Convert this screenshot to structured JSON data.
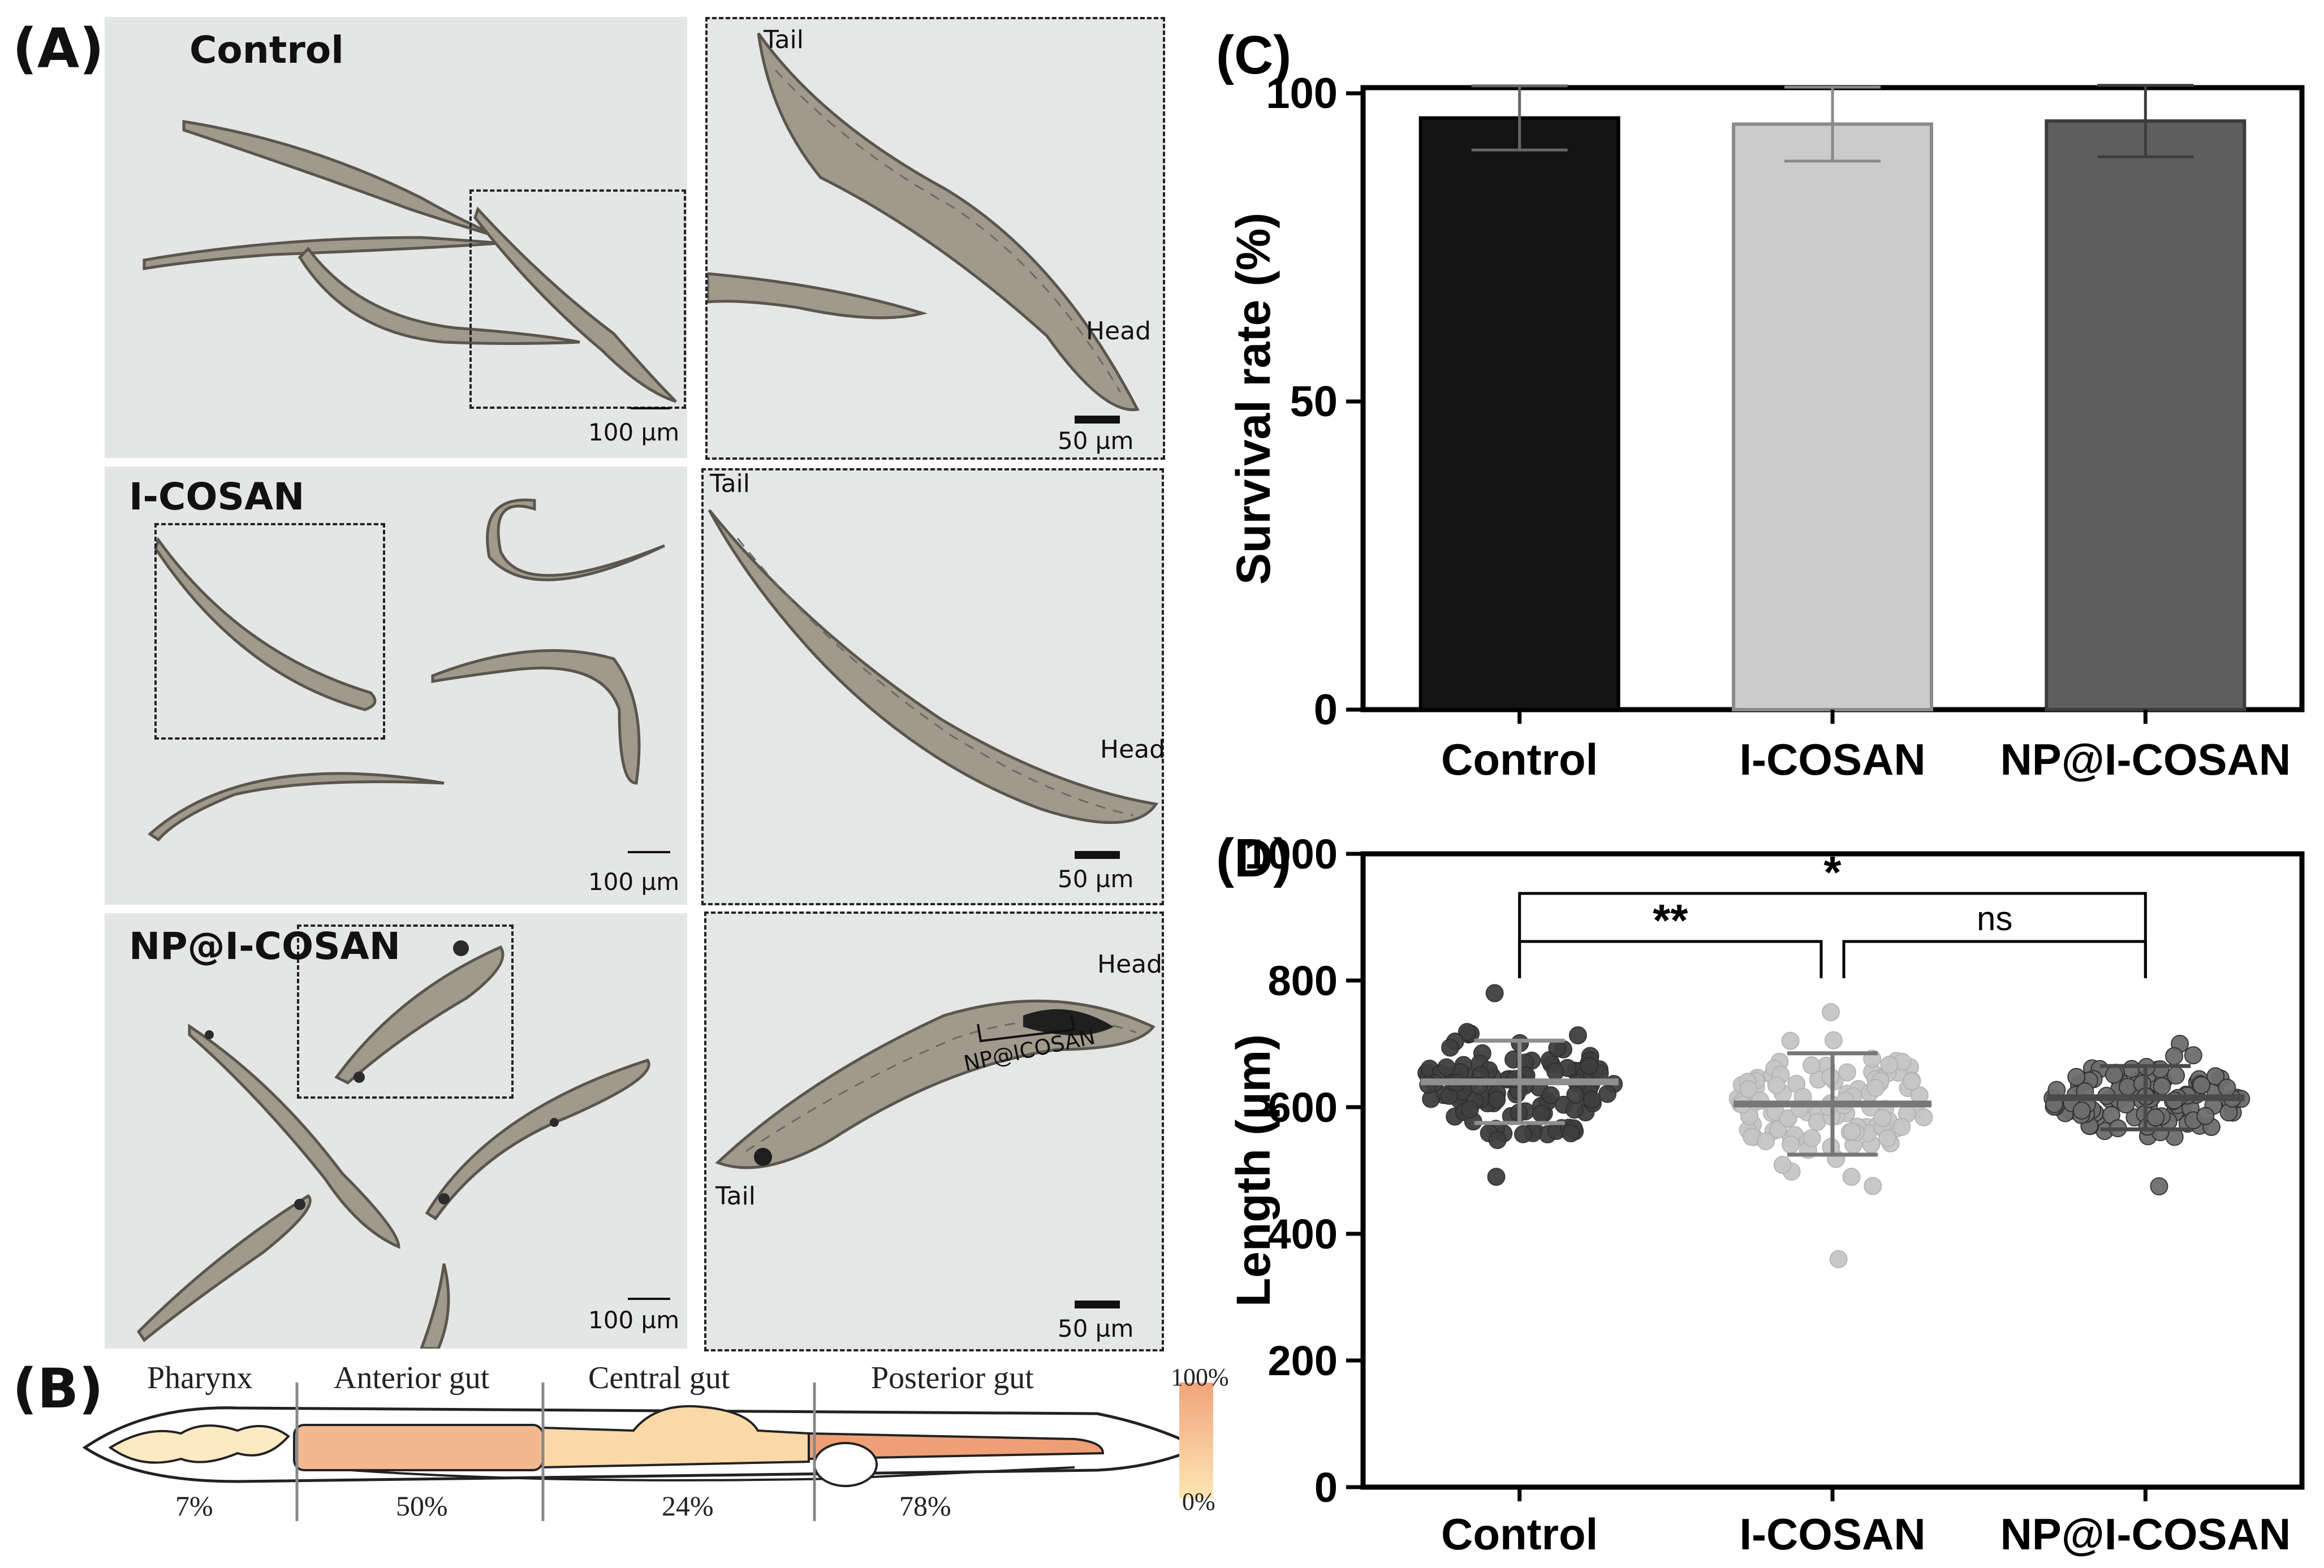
{
  "panelA": {
    "letter": "(A)",
    "rows": [
      {
        "label": "Control",
        "scale_main": "100 µm",
        "scale_zoom": "50 µm",
        "zoom_tail": "Tail",
        "zoom_head": "Head"
      },
      {
        "label": "I-COSAN",
        "scale_main": "100 µm",
        "scale_zoom": "50 µm",
        "zoom_tail": "Tail",
        "zoom_head": "Head"
      },
      {
        "label": "NP@I-COSAN",
        "scale_main": "100 µm",
        "scale_zoom": "50 µm",
        "zoom_tail": "Tail",
        "zoom_head": "Head",
        "zoom_annotation": "NP@ICOSAN"
      }
    ]
  },
  "panelB": {
    "letter": "(B)",
    "regions": [
      {
        "name": "Pharynx",
        "percent": "7%"
      },
      {
        "name": "Anterior gut",
        "percent": "50%"
      },
      {
        "name": "Central gut",
        "percent": "24%"
      },
      {
        "name": "Posterior gut",
        "percent": "78%"
      }
    ],
    "scale_max": "100%",
    "scale_min": "0%",
    "colors": {
      "low": "#fde6b5",
      "high": "#f0a47a"
    }
  },
  "chart_data": [
    {
      "panel": "(C)",
      "type": "bar",
      "categories": [
        "Control",
        "I-COSAN",
        "NP@I-COSAN"
      ],
      "values": [
        96,
        95,
        95.5
      ],
      "error": [
        5.2,
        6.0,
        5.8
      ],
      "colors": [
        "#141414",
        "#cbcbcb",
        "#5e5e5e"
      ],
      "edge_colors": [
        "#000000",
        "#8a8a8a",
        "#3c3c3c"
      ],
      "ylabel": "Survival rate (%)",
      "ylim": [
        0,
        100
      ],
      "yticks": [
        "0",
        "50",
        "100"
      ]
    },
    {
      "panel": "(D)",
      "type": "scatter",
      "categories": [
        "Control",
        "I-COSAN",
        "NP@I-COSAN"
      ],
      "means": [
        640,
        605,
        615
      ],
      "sd": [
        65,
        80,
        50
      ],
      "ranges": [
        [
          490,
          780
        ],
        [
          360,
          750
        ],
        [
          475,
          700
        ]
      ],
      "point_colors": [
        "#3f3f3f",
        "#c6c6c6",
        "#6d6d6d"
      ],
      "bar_colors": [
        "#8e8e8e",
        "#777777",
        "#4a4a4a"
      ],
      "ylabel": "Length (µm)",
      "ylim": [
        0,
        1000
      ],
      "yticks": [
        "0",
        "200",
        "400",
        "600",
        "800",
        "1000"
      ],
      "significance": [
        {
          "from": "Control",
          "to": "NP@I-COSAN",
          "label": "*"
        },
        {
          "from": "Control",
          "to": "I-COSAN",
          "label": "**"
        },
        {
          "from": "I-COSAN",
          "to": "NP@I-COSAN",
          "label": "ns"
        }
      ]
    }
  ]
}
